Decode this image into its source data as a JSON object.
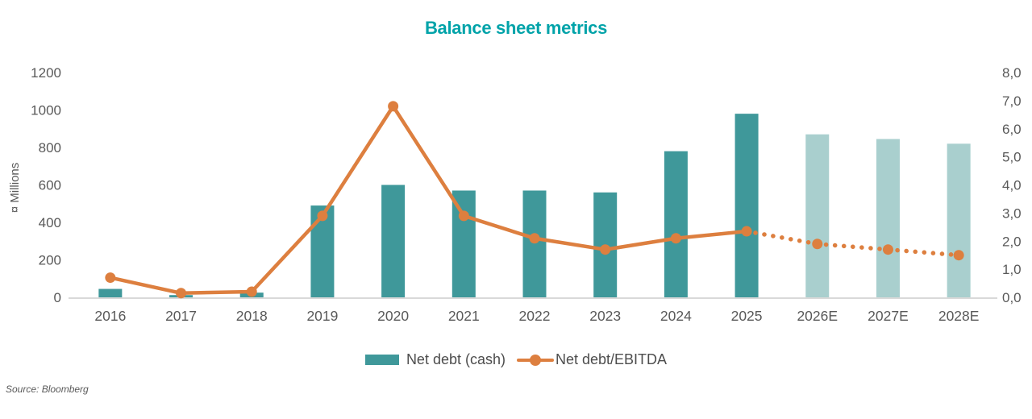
{
  "title": "Balance sheet metrics",
  "source_note": "Source: Bloomberg",
  "legend": {
    "items": [
      {
        "label": "Net debt (cash)",
        "swatch": "bar-swatch"
      },
      {
        "label": "Net debt/EBITDA",
        "swatch": "line-swatch"
      }
    ]
  },
  "colors": {
    "title": "#00a3a9",
    "bar": "#3f989a",
    "bar_forecast": "#a9cfce",
    "line": "#dd7f3f",
    "axis_text": "#595959",
    "legend_text": "#4d4d4d",
    "axis_line": "#d9d9d9",
    "background": "#ffffff"
  },
  "chart_data": {
    "type": "bar",
    "subtype": "combo-bar-line",
    "title": "Balance sheet metrics",
    "categories": [
      "2016",
      "2017",
      "2018",
      "2019",
      "2020",
      "2021",
      "2022",
      "2023",
      "2024",
      "2025",
      "2026E",
      "2027E",
      "2028E"
    ],
    "series": [
      {
        "name": "Net debt (cash)",
        "type": "bar",
        "axis": "left",
        "values": [
          45,
          12,
          25,
          490,
          600,
          570,
          570,
          560,
          780,
          980,
          870,
          845,
          820
        ],
        "forecast_start_index": 10
      },
      {
        "name": "Net debt/EBITDA",
        "type": "line",
        "axis": "right",
        "values": [
          0.7,
          0.15,
          0.2,
          2.9,
          6.8,
          2.9,
          2.1,
          1.7,
          2.1,
          2.35,
          1.9,
          1.7,
          1.5
        ],
        "dotted_start_index": 9
      }
    ],
    "left_axis": {
      "title": "¤ Millions",
      "min": 0,
      "max": 1200,
      "tick_step": 200,
      "tick_labels": [
        "0",
        "200",
        "400",
        "600",
        "800",
        "1000",
        "1200"
      ]
    },
    "right_axis": {
      "min": 0,
      "max": 8,
      "tick_step": 1,
      "tick_labels": [
        "0,0",
        "1,0",
        "2,0",
        "3,0",
        "4,0",
        "5,0",
        "6,0",
        "7,0",
        "8,0"
      ]
    },
    "grid": false,
    "legend_position": "bottom"
  }
}
